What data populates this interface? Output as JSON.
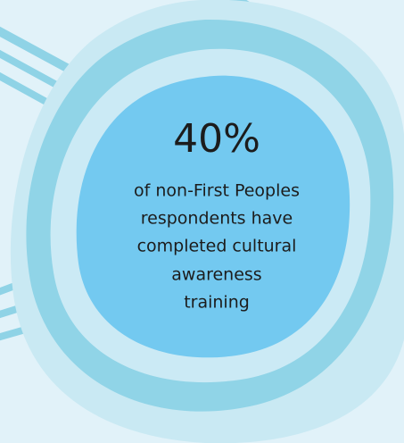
{
  "stat": {
    "value": "40%",
    "caption_lines": [
      "of non-First Peoples",
      "respondents have",
      "completed cultural",
      "awareness",
      "training"
    ]
  }
}
